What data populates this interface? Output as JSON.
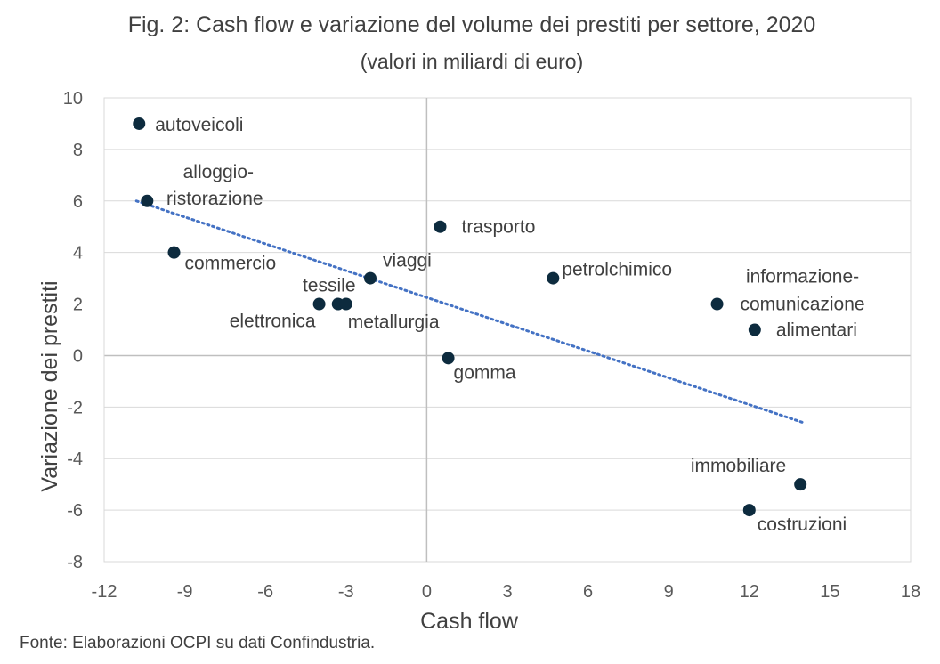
{
  "chart_data": {
    "type": "scatter",
    "title": "Fig. 2: Cash flow e variazione del volume dei prestiti per settore, 2020",
    "subtitle": "(valori in miliardi di euro)",
    "xlabel": "Cash flow",
    "ylabel": "Variazione dei prestiti",
    "xlim": [
      -12,
      18
    ],
    "ylim": [
      -8,
      10
    ],
    "xticks": [
      "-12",
      "-9",
      "-6",
      "-3",
      "0",
      "3",
      "6",
      "9",
      "12",
      "15",
      "18"
    ],
    "yticks": [
      "10",
      "8",
      "6",
      "4",
      "2",
      "0",
      "-2",
      "-4",
      "-6",
      "-8"
    ],
    "grid": "horizontal",
    "marker_color": "#0d2b3e",
    "trendline_color": "#4472c4",
    "trendline": {
      "type": "linear",
      "x": [
        -10.8,
        14
      ],
      "y": [
        6.0,
        -2.6
      ]
    },
    "points": [
      {
        "label": "autoveicoli",
        "x": -10.7,
        "y": 9
      },
      {
        "label": "alloggio-ristorazione",
        "x": -10.4,
        "y": 6
      },
      {
        "label": "commercio",
        "x": -9.4,
        "y": 4
      },
      {
        "label": "elettronica",
        "x": -4.0,
        "y": 2
      },
      {
        "label": "tessile",
        "x": -3.3,
        "y": 2
      },
      {
        "label": "metallurgia",
        "x": -3.0,
        "y": 2
      },
      {
        "label": "viaggi",
        "x": -2.1,
        "y": 3
      },
      {
        "label": "trasporto",
        "x": 0.5,
        "y": 5
      },
      {
        "label": "gomma",
        "x": 0.8,
        "y": -0.1
      },
      {
        "label": "petrolchimico",
        "x": 4.7,
        "y": 3
      },
      {
        "label": "informazione-comunicazione",
        "x": 10.8,
        "y": 2
      },
      {
        "label": "alimentari",
        "x": 12.2,
        "y": 1
      },
      {
        "label": "immobiliare",
        "x": 13.9,
        "y": -5
      },
      {
        "label": "costruzioni",
        "x": 12.0,
        "y": -6
      }
    ]
  },
  "footer": {
    "source": "Fonte: Elaborazioni OCPI su dati Confindustria."
  }
}
